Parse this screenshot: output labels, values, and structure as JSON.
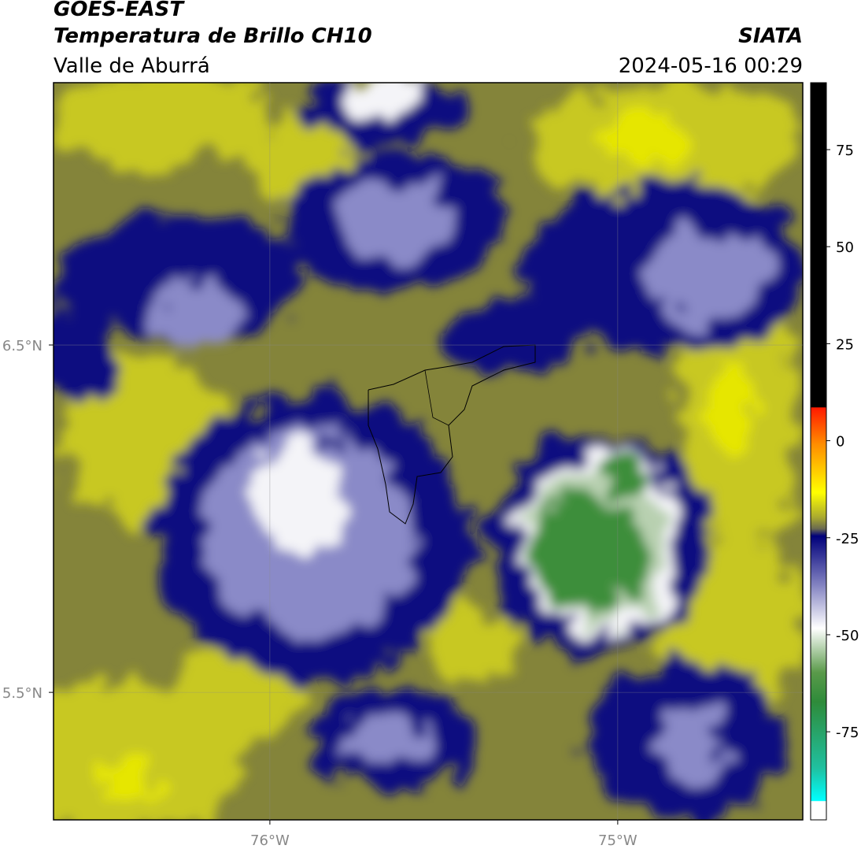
{
  "header": {
    "title": "GOES-EAST",
    "subtitle": "Temperatura de Brillo CH10",
    "region": "Valle de Aburrá",
    "source": "SIATA",
    "datetime": "2024-05-16 00:29"
  },
  "map": {
    "xlim": [
      -76.622,
      -74.468
    ],
    "ylim": [
      5.133,
      7.255
    ],
    "lon_ticks": [
      {
        "value": -76,
        "label": "76°W"
      },
      {
        "value": -75,
        "label": "75°W"
      }
    ],
    "lat_ticks": [
      {
        "value": 6.5,
        "label": "6.5°N"
      },
      {
        "value": 5.5,
        "label": "5.5°N"
      }
    ]
  },
  "colorbar": {
    "lim": [
      -97.7,
      92.25
    ],
    "ticks": [
      75,
      50,
      25,
      0,
      -25,
      -50,
      -75
    ]
  }
}
